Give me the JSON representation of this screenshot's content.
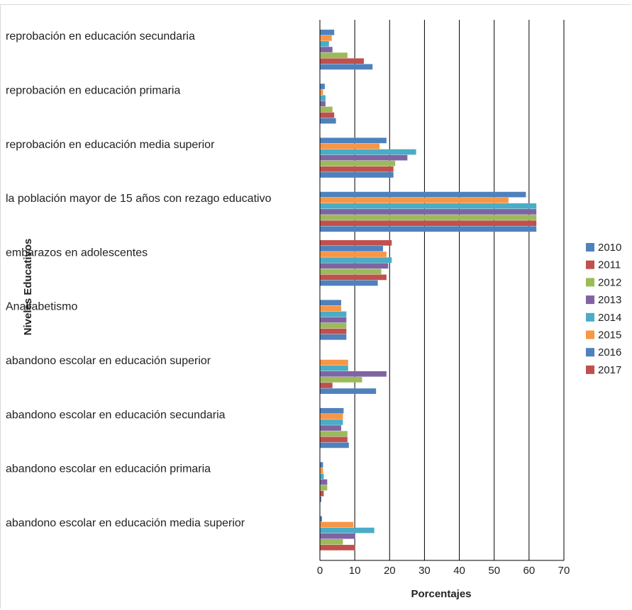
{
  "chart_data": {
    "type": "bar",
    "orientation": "horizontal",
    "xlabel": "Porcentajes",
    "ylabel": "Niveles Educativos",
    "xlim": [
      0,
      70
    ],
    "xticks": [
      0,
      10,
      20,
      30,
      40,
      50,
      60,
      70
    ],
    "grid": true,
    "legend_position": "right",
    "categories": [
      "reprobación en educación secundaria",
      "reprobación en educación primaria",
      "reprobación en educación media superior",
      "la población mayor de 15 años con rezago educativo",
      "embarazos en adolescentes",
      "Analfabetismo",
      "abandono escolar en educación superior",
      "abandono escolar en educación secundaria",
      "abandono escolar en educación primaria",
      "abandono escolar en educación media superior"
    ],
    "series": [
      {
        "name": "2010",
        "color": "#4f81bd",
        "values": [
          15,
          4.5,
          21,
          62,
          16.5,
          7.5,
          16,
          8.2,
          0.3,
          0
        ]
      },
      {
        "name": "2011",
        "color": "#c0504d",
        "values": [
          12.5,
          4,
          21,
          62,
          19,
          7.5,
          3.5,
          7.8,
          1,
          10
        ]
      },
      {
        "name": "2012",
        "color": "#9bbb59",
        "values": [
          7.8,
          3.5,
          21.5,
          62,
          17.5,
          7.5,
          12,
          7.8,
          2,
          6.5
        ]
      },
      {
        "name": "2013",
        "color": "#8064a2",
        "values": [
          3.5,
          1.5,
          25,
          62,
          19.5,
          7.5,
          19,
          6,
          2,
          10
        ]
      },
      {
        "name": "2014",
        "color": "#4bacc6",
        "values": [
          2.5,
          1.5,
          27.5,
          62,
          20.5,
          7.5,
          8,
          6.5,
          1,
          15.5
        ]
      },
      {
        "name": "2015",
        "color": "#f79646",
        "values": [
          3.3,
          0.8,
          17,
          54,
          19,
          6,
          8,
          6.5,
          0.8,
          9.5
        ]
      },
      {
        "name": "2016",
        "color": "#4f81bd",
        "values": [
          4,
          1.3,
          19,
          59,
          18,
          6,
          0,
          6.7,
          0.8,
          0.5
        ]
      },
      {
        "name": "2017",
        "color": "#c0504d",
        "values": [
          0,
          0,
          0,
          0,
          20.5,
          0,
          0,
          0,
          0,
          0
        ]
      }
    ]
  }
}
